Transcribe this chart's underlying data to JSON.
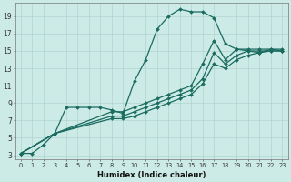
{
  "xlabel": "Humidex (Indice chaleur)",
  "ylabel": "",
  "bg_color": "#cceae6",
  "grid_color": "#aacfcb",
  "line_color": "#1a6b60",
  "xlim": [
    -0.5,
    23.5
  ],
  "ylim": [
    2.5,
    20.5
  ],
  "yticks": [
    3,
    5,
    7,
    9,
    11,
    13,
    15,
    17,
    19
  ],
  "xticks": [
    0,
    1,
    2,
    3,
    4,
    5,
    6,
    7,
    8,
    9,
    10,
    11,
    12,
    13,
    14,
    15,
    16,
    17,
    18,
    19,
    20,
    21,
    22,
    23
  ],
  "series": [
    {
      "x": [
        0,
        1,
        2,
        3,
        4,
        5,
        6,
        7,
        8,
        9,
        10,
        11,
        12,
        13,
        14,
        15,
        16,
        17,
        18,
        19,
        20,
        21,
        22,
        23
      ],
      "y": [
        3.2,
        3.2,
        4.2,
        5.5,
        8.5,
        8.5,
        8.5,
        8.5,
        8.2,
        7.8,
        11.5,
        14.0,
        17.5,
        19.0,
        19.8,
        19.5,
        19.5,
        18.8,
        15.8,
        15.2,
        15.0,
        14.8,
        15.2,
        15.0
      ]
    },
    {
      "x": [
        0,
        3,
        8,
        9,
        10,
        11,
        12,
        13,
        14,
        15,
        16,
        17,
        18,
        19,
        20,
        21,
        22,
        23
      ],
      "y": [
        3.2,
        5.5,
        8.0,
        8.0,
        8.5,
        9.0,
        9.5,
        10.0,
        10.5,
        11.0,
        13.5,
        16.2,
        14.0,
        15.2,
        15.2,
        15.2,
        15.2,
        15.2
      ]
    },
    {
      "x": [
        0,
        3,
        8,
        9,
        10,
        11,
        12,
        13,
        14,
        15,
        16,
        17,
        18,
        19,
        20,
        21,
        22,
        23
      ],
      "y": [
        3.2,
        5.5,
        7.5,
        7.5,
        8.0,
        8.5,
        9.0,
        9.5,
        10.0,
        10.5,
        11.8,
        14.8,
        13.5,
        14.5,
        15.0,
        15.0,
        15.0,
        15.0
      ]
    },
    {
      "x": [
        0,
        3,
        8,
        9,
        10,
        11,
        12,
        13,
        14,
        15,
        16,
        17,
        18,
        19,
        20,
        21,
        22,
        23
      ],
      "y": [
        3.2,
        5.5,
        7.2,
        7.2,
        7.5,
        8.0,
        8.5,
        9.0,
        9.5,
        10.0,
        11.2,
        13.5,
        13.0,
        14.0,
        14.5,
        14.8,
        15.0,
        15.0
      ]
    }
  ]
}
